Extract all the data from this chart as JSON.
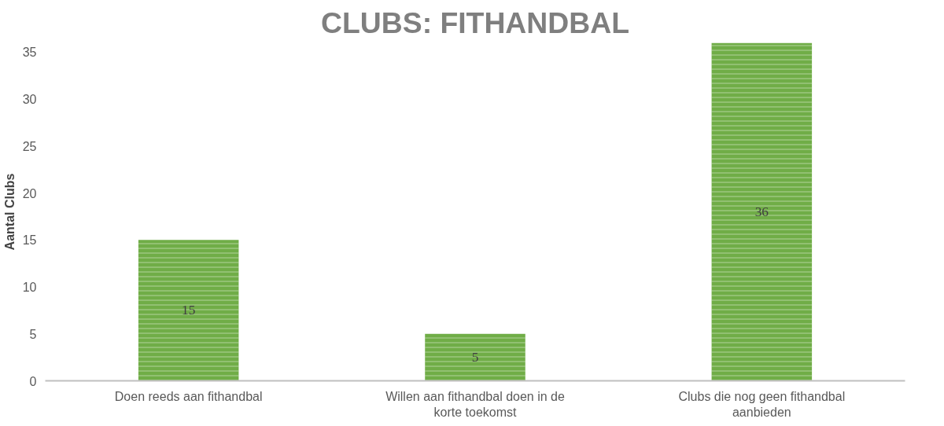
{
  "chart_data": {
    "type": "bar",
    "title": "CLUBS: FITHANDBAL",
    "ylabel": "Aantal Clubs",
    "categories": [
      "Doen reeds aan fithandbal",
      "Willen aan fithandbal doen in de korte toekomst",
      "Clubs die nog geen fithandbal aanbieden"
    ],
    "values": [
      15,
      5,
      36
    ],
    "color": "#70ad47",
    "ylim": [
      0,
      36
    ],
    "yticks": [
      0,
      5,
      10,
      15,
      20,
      25,
      30,
      35
    ],
    "grid": false,
    "data_labels": true
  }
}
